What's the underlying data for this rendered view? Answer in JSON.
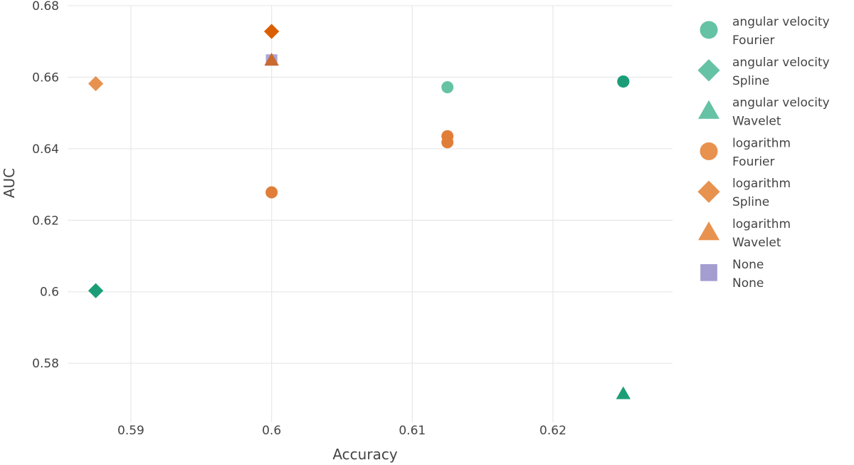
{
  "chart_data": {
    "type": "scatter",
    "title": "",
    "xlabel": "Accuracy",
    "ylabel": "AUC",
    "xlim": [
      0.5855,
      0.6285
    ],
    "ylim": [
      0.5635,
      0.68
    ],
    "x_ticks": [
      "0.59",
      "0.6",
      "0.61",
      "0.62"
    ],
    "y_ticks": [
      "0.58",
      "0.6",
      "0.62",
      "0.64",
      "0.66",
      "0.68"
    ],
    "grid": true,
    "legend_position": "right",
    "colors": {
      "angular_velocity_legend": "#66c2a5",
      "angular_velocity_marker": "#1b9e77",
      "logarithm_legend": "#e8924f",
      "logarithm_marker": "#e07e39",
      "logarithm_dark": "#d95f02",
      "none": "#a39dd0",
      "grid": "#e9e9e9"
    },
    "series": [
      {
        "line1": "angular velocity",
        "line2": "Fourier",
        "symbol": "circle",
        "points": [
          {
            "x": 0.6125,
            "y": 0.6572,
            "color": "#66c2a5"
          },
          {
            "x": 0.625,
            "y": 0.6588,
            "color": "#1b9e77"
          },
          {
            "x": 0.625,
            "y": 0.6588,
            "color": "#1b9e77"
          }
        ]
      },
      {
        "line1": "angular velocity",
        "line2": "Spline",
        "symbol": "diamond",
        "points": [
          {
            "x": 0.5875,
            "y": 0.6003,
            "color": "#1b9e77"
          }
        ]
      },
      {
        "line1": "angular velocity",
        "line2": "Wavelet",
        "symbol": "triangle",
        "points": [
          {
            "x": 0.625,
            "y": 0.5715,
            "color": "#1b9e77"
          }
        ]
      },
      {
        "line1": "logarithm",
        "line2": "Fourier",
        "symbol": "circle",
        "points": [
          {
            "x": 0.6,
            "y": 0.6278,
            "color": "#e07e39"
          },
          {
            "x": 0.6125,
            "y": 0.6435,
            "color": "#e07e39"
          },
          {
            "x": 0.6125,
            "y": 0.6418,
            "color": "#e07e39"
          }
        ]
      },
      {
        "line1": "logarithm",
        "line2": "Spline",
        "symbol": "diamond",
        "points": [
          {
            "x": 0.5875,
            "y": 0.6582,
            "color": "#e8924f"
          },
          {
            "x": 0.6,
            "y": 0.6728,
            "color": "#d95f02"
          }
        ]
      },
      {
        "line1": "logarithm",
        "line2": "Wavelet",
        "symbol": "triangle",
        "points": [
          {
            "x": 0.6,
            "y": 0.6648,
            "color": "#c96a2e"
          }
        ]
      },
      {
        "line1": "None",
        "line2": "None",
        "symbol": "square",
        "points": [
          {
            "x": 0.6,
            "y": 0.6648,
            "color": "#a39dd0"
          }
        ]
      }
    ]
  }
}
